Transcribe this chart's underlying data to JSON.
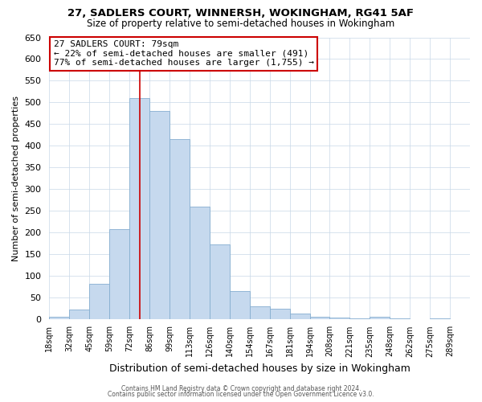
{
  "title": "27, SADLERS COURT, WINNERSH, WOKINGHAM, RG41 5AF",
  "subtitle": "Size of property relative to semi-detached houses in Wokingham",
  "xlabel": "Distribution of semi-detached houses by size in Wokingham",
  "ylabel": "Number of semi-detached properties",
  "bin_labels": [
    "18sqm",
    "32sqm",
    "45sqm",
    "59sqm",
    "72sqm",
    "86sqm",
    "99sqm",
    "113sqm",
    "126sqm",
    "140sqm",
    "154sqm",
    "167sqm",
    "181sqm",
    "194sqm",
    "208sqm",
    "221sqm",
    "235sqm",
    "248sqm",
    "262sqm",
    "275sqm",
    "289sqm"
  ],
  "values": [
    5,
    22,
    80,
    207,
    510,
    480,
    415,
    260,
    172,
    65,
    28,
    23,
    13,
    5,
    3,
    1,
    5,
    1,
    0,
    1,
    0
  ],
  "bar_color": "#c6d9ee",
  "bar_edge_color": "#85aed0",
  "property_size_idx": 4.5,
  "vline_color": "#cc0000",
  "annotation_title": "27 SADLERS COURT: 79sqm",
  "annotation_line1": "← 22% of semi-detached houses are smaller (491)",
  "annotation_line2": "77% of semi-detached houses are larger (1,755) →",
  "annotation_box_edgecolor": "#cc0000",
  "ylim": [
    0,
    650
  ],
  "yticks": [
    0,
    50,
    100,
    150,
    200,
    250,
    300,
    350,
    400,
    450,
    500,
    550,
    600,
    650
  ],
  "footer1": "Contains HM Land Registry data © Crown copyright and database right 2024.",
  "footer2": "Contains public sector information licensed under the Open Government Licence v3.0.",
  "background_color": "#ffffff",
  "grid_color": "#c8d8e8"
}
